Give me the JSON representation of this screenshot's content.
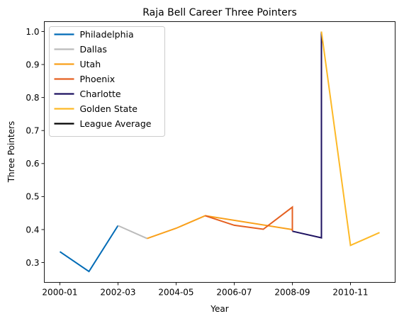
{
  "chart_data": {
    "type": "line",
    "title": "Raja Bell Career Three Pointers",
    "xlabel": "Year",
    "ylabel": "Three Pointers",
    "x_ticks": [
      "2000-01",
      "2002-03",
      "2004-05",
      "2006-07",
      "2008-09",
      "2010-11"
    ],
    "ylim": [
      0.24,
      1.03
    ],
    "y_ticks": [
      "0.3",
      "0.4",
      "0.5",
      "0.6",
      "0.7",
      "0.8",
      "0.9",
      "1.0"
    ],
    "grid": false,
    "legend_position": "top-left",
    "series": [
      {
        "name": "Philadelphia",
        "color": "#006BB6",
        "points": [
          [
            "2000-01",
            0.333
          ],
          [
            "2001-02",
            0.273
          ],
          [
            "2002-03",
            0.412
          ]
        ]
      },
      {
        "name": "Dallas",
        "color": "#BBBBBB",
        "points": [
          [
            "2002-03",
            0.412
          ],
          [
            "2003-04",
            0.373
          ]
        ]
      },
      {
        "name": "Utah",
        "color": "#F9A01B",
        "points": [
          [
            "2003-04",
            0.373
          ],
          [
            "2004-05",
            0.404
          ],
          [
            "2005-06",
            0.442
          ],
          [
            "2008-09",
            0.4
          ]
        ]
      },
      {
        "name": "Phoenix",
        "color": "#E56020",
        "points": [
          [
            "2005-06",
            0.442
          ],
          [
            "2006-07",
            0.413
          ],
          [
            "2007-08",
            0.401
          ],
          [
            "2008-09",
            0.468
          ],
          [
            "2008-09",
            0.395
          ]
        ]
      },
      {
        "name": "Charlotte",
        "color": "#1D1160",
        "points": [
          [
            "2008-09",
            0.395
          ],
          [
            "2009-10",
            0.375
          ],
          [
            "2009-10",
            1.0
          ]
        ]
      },
      {
        "name": "Golden State",
        "color": "#FDB927",
        "points": [
          [
            "2009-10",
            1.0
          ],
          [
            "2010-11",
            0.352
          ],
          [
            "2011-12",
            0.391
          ]
        ]
      },
      {
        "name": "League Average",
        "color": "#000000",
        "points": []
      }
    ]
  }
}
